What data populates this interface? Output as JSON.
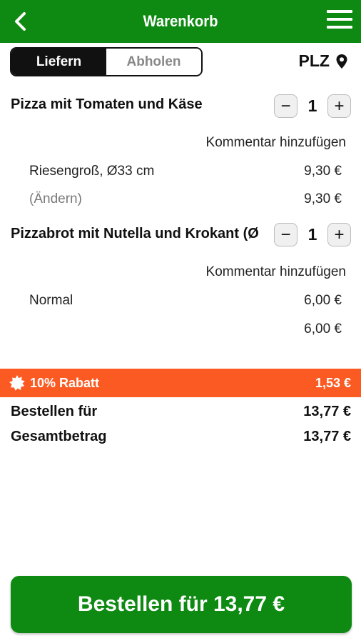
{
  "header": {
    "title": "Warenkorb",
    "back_icon": "chevron-left-icon",
    "menu_icon": "hamburger-menu-icon"
  },
  "delivery_toggle": {
    "options": [
      "Liefern",
      "Abholen"
    ],
    "selected": "Liefern"
  },
  "plz": {
    "label": "PLZ",
    "icon": "location-pin-icon"
  },
  "cart_items": [
    {
      "name": "Pizza mit Tomaten und Käse",
      "quantity": "1",
      "comment_label": "Kommentar hinzufügen",
      "option_label": "Riesengroß, Ø33 cm",
      "option_price": "9,30 €",
      "change_label": "(Ändern)",
      "total_price": "9,30 €"
    },
    {
      "name": "Pizzabrot mit Nutella und Krokant (Ø",
      "quantity": "1",
      "comment_label": "Kommentar hinzufügen",
      "option_label": "Normal",
      "option_price": "6,00 €",
      "total_price": "6,00 €"
    }
  ],
  "stepper": {
    "minus": "−",
    "plus": "+"
  },
  "discount": {
    "label": "10% Rabatt",
    "amount": "1,53 €",
    "color": "#fb5a22"
  },
  "summary": {
    "order_for_label": "Bestellen für",
    "order_for_value": "13,77 €",
    "total_label": "Gesamtbetrag",
    "total_value": "13,77 €"
  },
  "order_button": {
    "label": "Bestellen für 13,77 €"
  },
  "colors": {
    "brand_green": "#0e8a12",
    "discount_orange": "#fb5a22"
  }
}
